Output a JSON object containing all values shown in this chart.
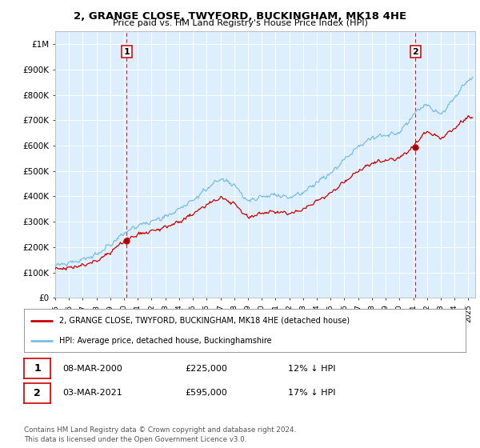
{
  "title": "2, GRANGE CLOSE, TWYFORD, BUCKINGHAM, MK18 4HE",
  "subtitle": "Price paid vs. HM Land Registry's House Price Index (HPI)",
  "ylabel_ticks": [
    "£0",
    "£100K",
    "£200K",
    "£300K",
    "£400K",
    "£500K",
    "£600K",
    "£700K",
    "£800K",
    "£900K",
    "£1M"
  ],
  "ytick_values": [
    0,
    100000,
    200000,
    300000,
    400000,
    500000,
    600000,
    700000,
    800000,
    900000,
    1000000
  ],
  "ylim": [
    0,
    1050000
  ],
  "xlim_start": 1995.0,
  "xlim_end": 2025.5,
  "sale1_year": 2000.18,
  "sale1_price": 225000,
  "sale1_label": "1",
  "sale1_date": "08-MAR-2000",
  "sale1_hpi_rel": "12% ↓ HPI",
  "sale2_year": 2021.17,
  "sale2_price": 595000,
  "sale2_label": "2",
  "sale2_date": "03-MAR-2021",
  "sale2_hpi_rel": "17% ↓ HPI",
  "hpi_color": "#7abde8",
  "price_color": "#cc0000",
  "vline_color": "#cc0000",
  "background_color": "#ffffff",
  "plot_bg_color": "#ddeeff",
  "grid_color": "#ffffff",
  "legend_label_price": "2, GRANGE CLOSE, TWYFORD, BUCKINGHAM, MK18 4HE (detached house)",
  "legend_label_hpi": "HPI: Average price, detached house, Buckinghamshire",
  "footnote": "Contains HM Land Registry data © Crown copyright and database right 2024.\nThis data is licensed under the Open Government Licence v3.0.",
  "xtick_years": [
    1995,
    1996,
    1997,
    1998,
    1999,
    2000,
    2001,
    2002,
    2003,
    2004,
    2005,
    2006,
    2007,
    2008,
    2009,
    2010,
    2011,
    2012,
    2013,
    2014,
    2015,
    2016,
    2017,
    2018,
    2019,
    2020,
    2021,
    2022,
    2023,
    2024,
    2025
  ]
}
